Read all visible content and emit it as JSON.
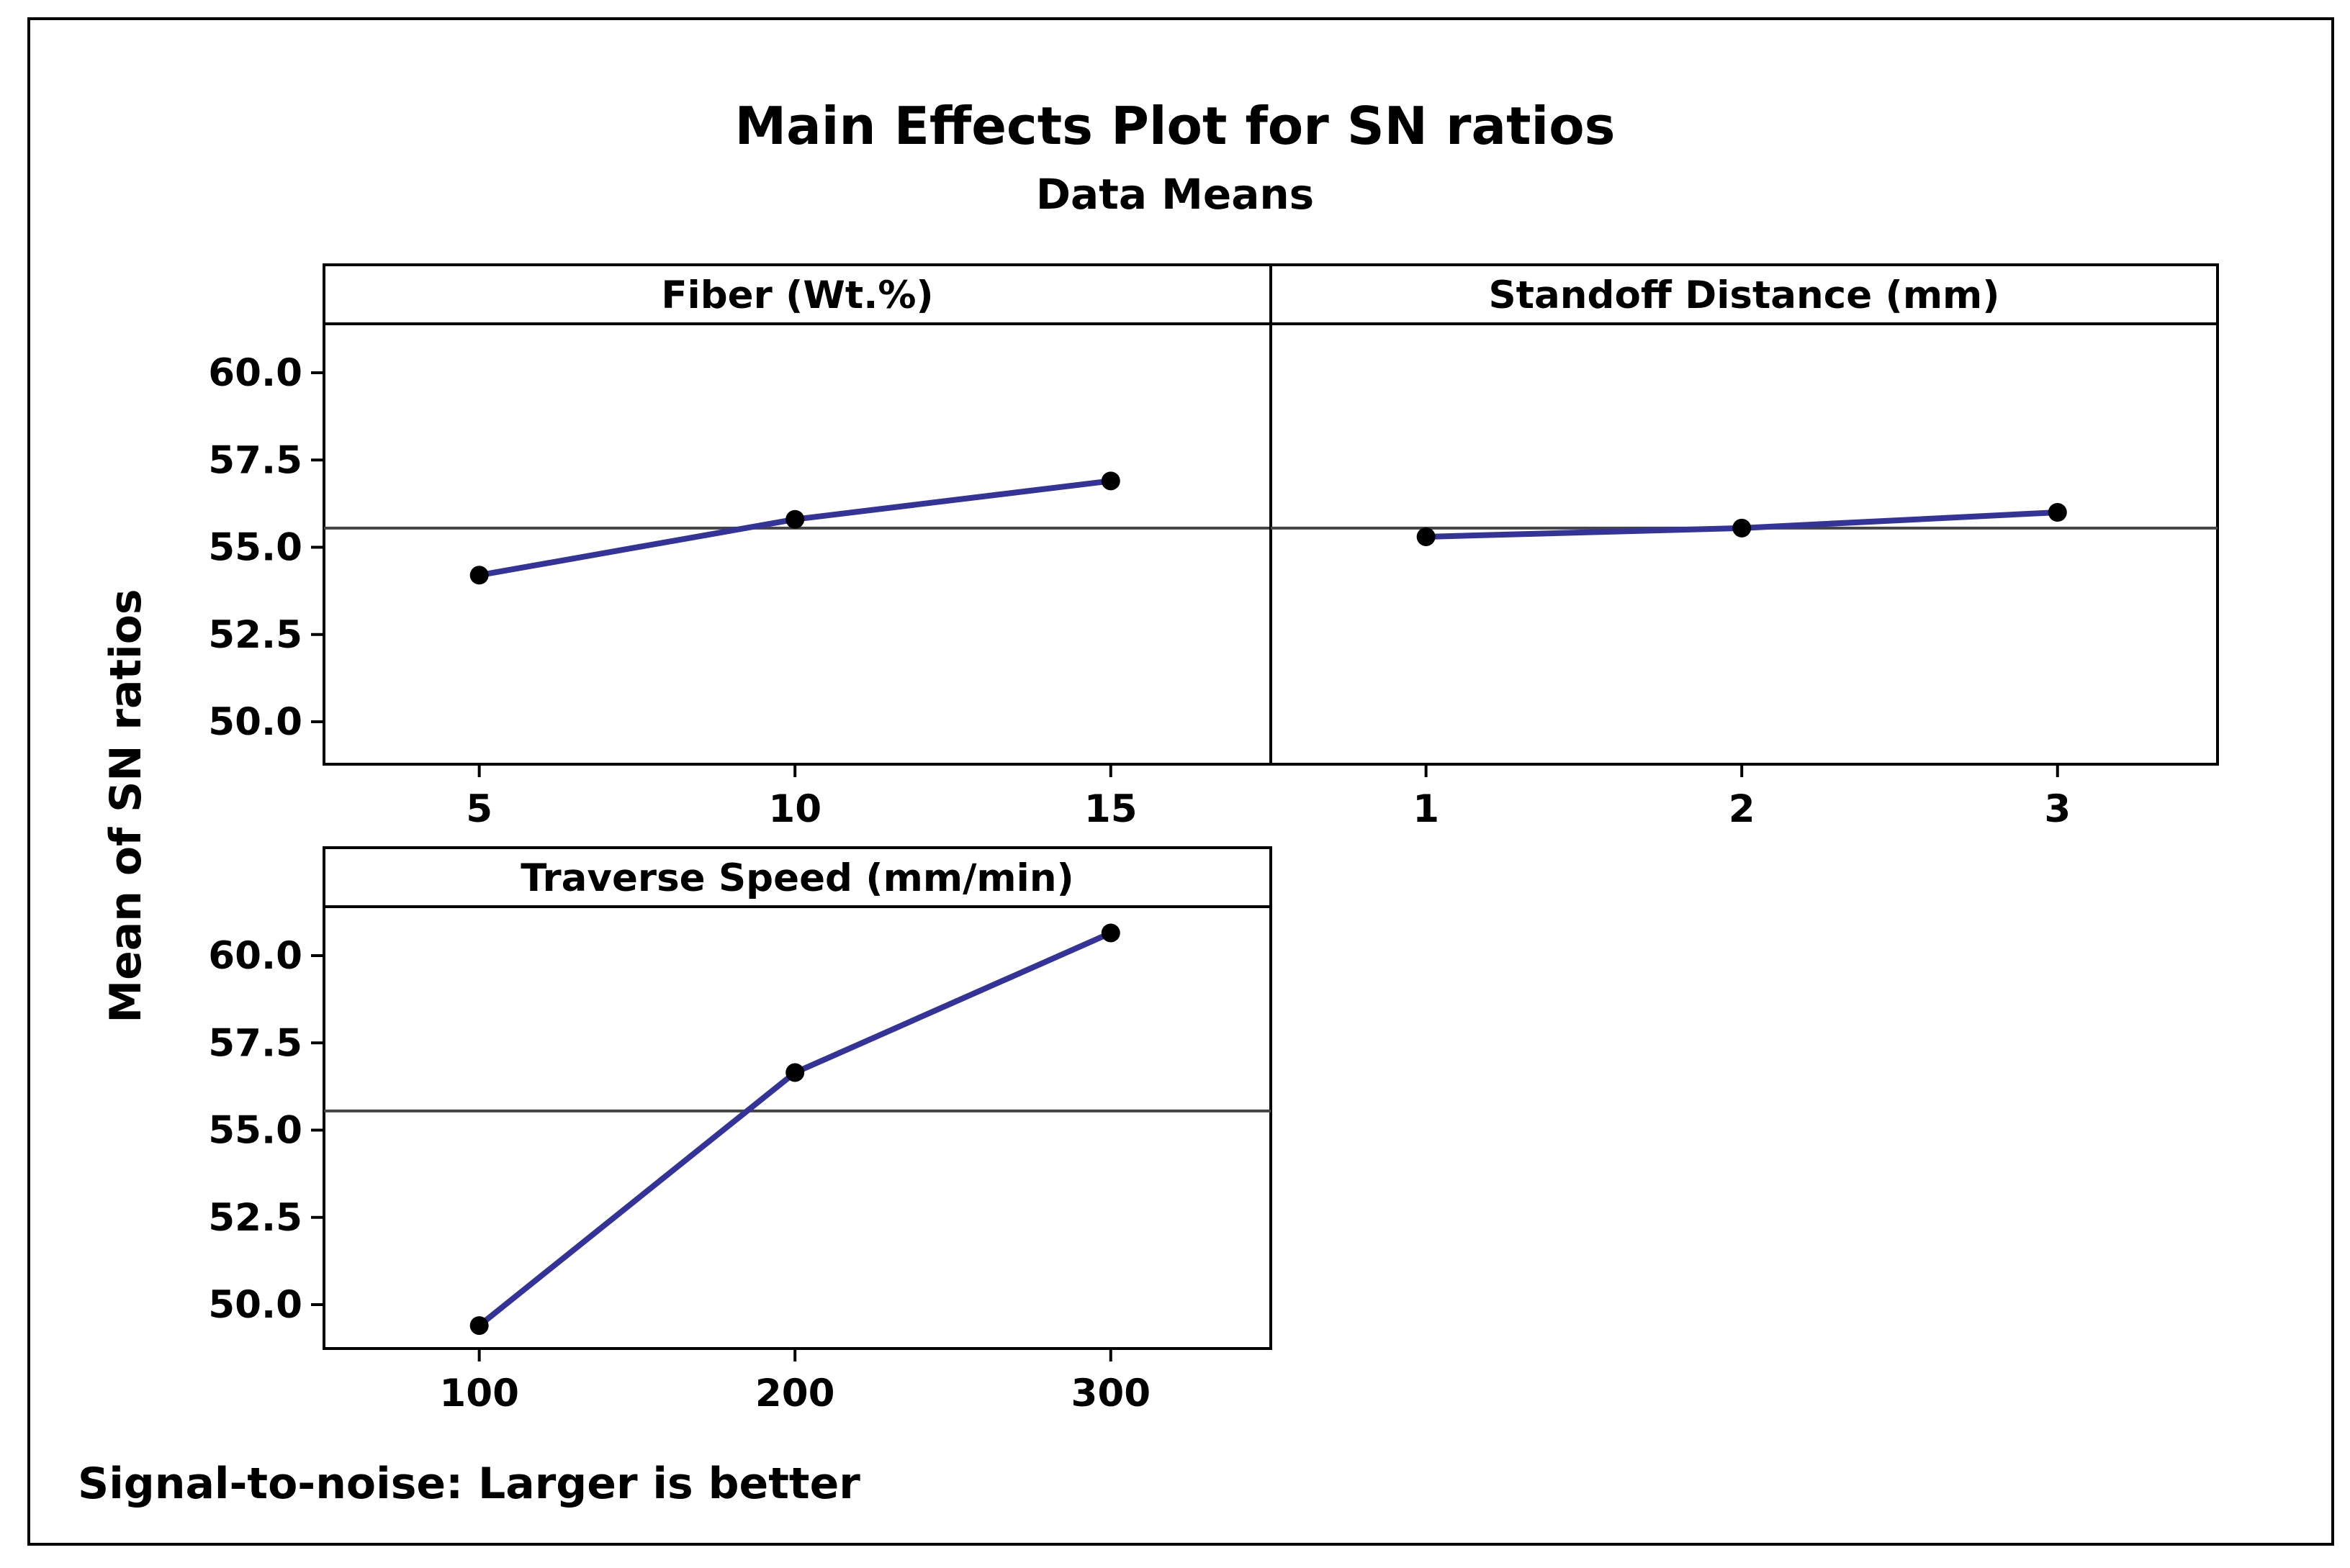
{
  "chart_data": {
    "type": "line",
    "title": "Main Effects Plot for SN ratios",
    "subtitle": "Data Means",
    "ylabel": "Mean of SN ratios",
    "footnote": "Signal-to-noise: Larger is better",
    "ylim": [
      48.5,
      61.5
    ],
    "yticks": [
      "50.0",
      "52.5",
      "55.0",
      "57.5",
      "60.0"
    ],
    "mean_line": 55.55,
    "series_color": "#333399",
    "panels": [
      {
        "name": "Fiber (Wt.%)",
        "categories": [
          "5",
          "10",
          "15"
        ],
        "values": [
          54.2,
          55.8,
          56.9
        ]
      },
      {
        "name": "Standoff Distance (mm)",
        "categories": [
          "1",
          "2",
          "3"
        ],
        "values": [
          55.3,
          55.55,
          56.0
        ]
      },
      {
        "name": "Traverse Speed (mm/min)",
        "categories": [
          "100",
          "200",
          "300"
        ],
        "values": [
          49.4,
          56.65,
          60.65
        ]
      }
    ]
  }
}
